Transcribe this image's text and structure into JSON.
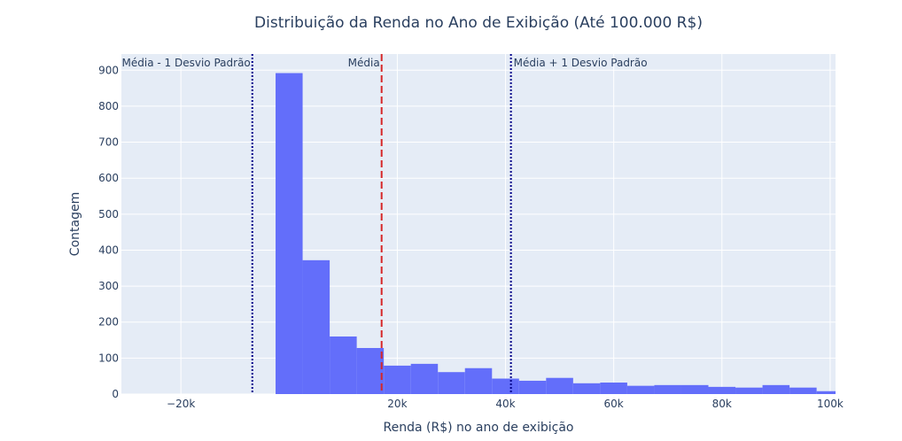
{
  "chart_data": {
    "type": "bar",
    "title": "Distribuição da Renda no Ano de Exibição (Até 100.000 R$)",
    "xlabel": "Renda (R$) no ano de exibição",
    "ylabel": "Contagem",
    "xlim": [
      -31000,
      101000
    ],
    "ylim": [
      0,
      945
    ],
    "x_ticks": [
      -20000,
      20000,
      40000,
      60000,
      80000,
      100000
    ],
    "x_tick_labels": [
      "−20k",
      "20k",
      "40k",
      "60k",
      "80k",
      "100k"
    ],
    "y_ticks": [
      0,
      100,
      200,
      300,
      400,
      500,
      600,
      700,
      800,
      900
    ],
    "y_tick_labels": [
      "0",
      "100",
      "200",
      "300",
      "400",
      "500",
      "600",
      "700",
      "800",
      "900"
    ],
    "grid": true,
    "bins": [
      {
        "x0": -2500,
        "x1": 2500,
        "count": 892
      },
      {
        "x0": 2500,
        "x1": 7500,
        "count": 372
      },
      {
        "x0": 7500,
        "x1": 12500,
        "count": 160
      },
      {
        "x0": 12500,
        "x1": 17500,
        "count": 128
      },
      {
        "x0": 17500,
        "x1": 22500,
        "count": 79
      },
      {
        "x0": 22500,
        "x1": 27500,
        "count": 84
      },
      {
        "x0": 27500,
        "x1": 32500,
        "count": 61
      },
      {
        "x0": 32500,
        "x1": 37500,
        "count": 72
      },
      {
        "x0": 37500,
        "x1": 42500,
        "count": 43
      },
      {
        "x0": 42500,
        "x1": 47500,
        "count": 37
      },
      {
        "x0": 47500,
        "x1": 52500,
        "count": 45
      },
      {
        "x0": 52500,
        "x1": 57500,
        "count": 30
      },
      {
        "x0": 57500,
        "x1": 62500,
        "count": 32
      },
      {
        "x0": 62500,
        "x1": 67500,
        "count": 23
      },
      {
        "x0": 67500,
        "x1": 72500,
        "count": 25
      },
      {
        "x0": 72500,
        "x1": 77500,
        "count": 25
      },
      {
        "x0": 77500,
        "x1": 82500,
        "count": 20
      },
      {
        "x0": 82500,
        "x1": 87500,
        "count": 18
      },
      {
        "x0": 87500,
        "x1": 92500,
        "count": 25
      },
      {
        "x0": 92500,
        "x1": 97500,
        "count": 18
      },
      {
        "x0": 97500,
        "x1": 102500,
        "count": 8
      }
    ],
    "reference_lines": [
      {
        "name": "Média - 1 Desvio Padrão",
        "value": -6800,
        "color": "#00008b",
        "dash": "dot",
        "label_align": "end"
      },
      {
        "name": "Média",
        "value": 17100,
        "color": "#d62728",
        "dash": "dash",
        "label_align": "end"
      },
      {
        "name": "Média + 1 Desvio Padrão",
        "value": 41000,
        "color": "#00008b",
        "dash": "dot",
        "label_align": "start"
      }
    ],
    "colors": {
      "bar": "#636efa",
      "plot_bg": "#e5ecf6",
      "grid": "#ffffff",
      "text": "#2a3f5f"
    }
  }
}
